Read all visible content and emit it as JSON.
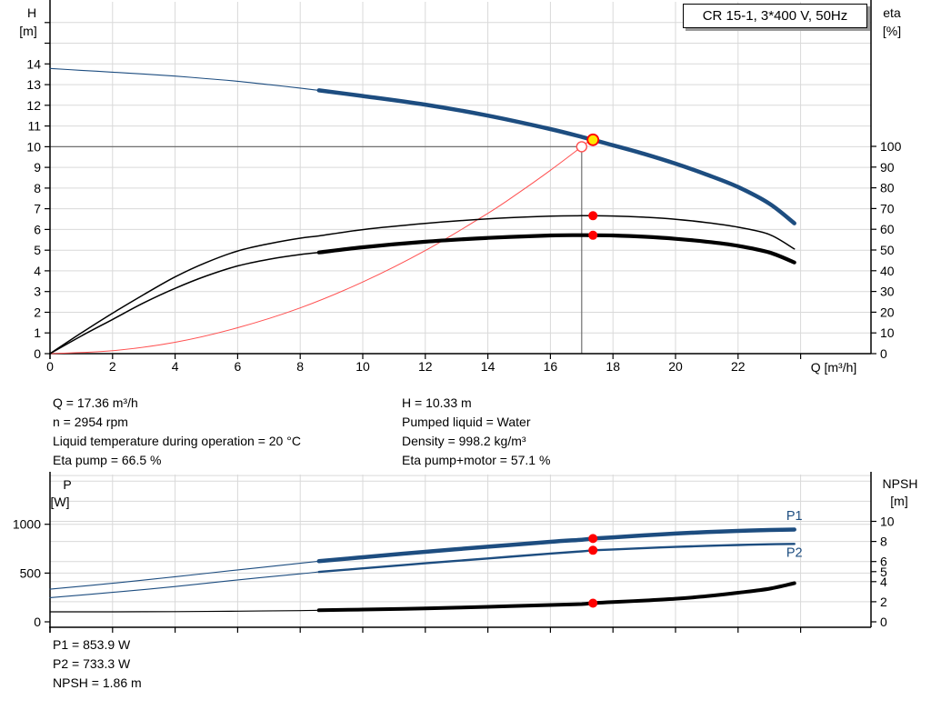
{
  "title_box": {
    "label": "CR 15-1, 3*400 V, 50Hz"
  },
  "info_top": {
    "left": [
      "Q = 17.36 m³/h",
      "n = 2954 rpm",
      "Liquid temperature during operation = 20 °C",
      "Eta pump = 66.5 %"
    ],
    "right": [
      "H = 10.33 m",
      "Pumped liquid = Water",
      "Density = 998.2 kg/m³",
      "Eta pump+motor = 57.1 %"
    ]
  },
  "info_bottom": [
    "P1 = 853.9 W",
    "P2 = 733.3 W",
    "NPSH = 1.86 m"
  ],
  "colors": {
    "curve_blue": "#1d4d80",
    "curve_black": "#000000",
    "marker_red": "#ff0000",
    "system_red": "#ff5050",
    "duty_yellow": "#ffe600",
    "grid": "#d9d9d9",
    "crosshair": "#6f6f6f",
    "axis": "#000000"
  },
  "chart_data": [
    {
      "name": "head-chart",
      "type": "line",
      "title": "CR 15-1, 3*400 V, 50Hz",
      "x_axis": {
        "label": "Q [m³/h]",
        "min": 0,
        "max": 26.25,
        "ticks": [
          0,
          2,
          4,
          6,
          8,
          10,
          12,
          14,
          16,
          18,
          20,
          22,
          24
        ],
        "tick_labels": [
          "0",
          "2",
          "4",
          "6",
          "8",
          "10",
          "12",
          "14",
          "16",
          "18",
          "20",
          "22",
          ""
        ],
        "gridlines": [
          2,
          4,
          6,
          8,
          10,
          12,
          14,
          16,
          18,
          20,
          22,
          24
        ]
      },
      "left_axis": {
        "label": [
          "H",
          "[m]"
        ],
        "min": 0,
        "max": 17.0,
        "ticks": [
          0,
          1,
          2,
          3,
          4,
          5,
          6,
          7,
          8,
          9,
          10,
          11,
          12,
          13,
          14,
          15,
          16
        ],
        "tick_labels": [
          "0",
          "1",
          "2",
          "3",
          "4",
          "5",
          "6",
          "7",
          "8",
          "9",
          "10",
          "11",
          "12",
          "13",
          "14",
          "",
          ""
        ],
        "gridlines": [
          1,
          2,
          3,
          4,
          5,
          6,
          7,
          8,
          9,
          10,
          11,
          12,
          13,
          14,
          15,
          16
        ]
      },
      "right_axis": {
        "label": [
          "eta",
          "[%]"
        ],
        "min": 0,
        "max": 169.7,
        "ticks": [
          0,
          10,
          20,
          30,
          40,
          50,
          60,
          70,
          80,
          90,
          100
        ],
        "tick_labels": [
          "0",
          "10",
          "20",
          "30",
          "40",
          "50",
          "60",
          "70",
          "80",
          "90",
          "100"
        ],
        "gridlines": []
      },
      "crosshair": {
        "q": 17.0,
        "value": 10.0
      },
      "series": [
        {
          "name": "system-curve",
          "axis": "left",
          "color": "#ff5050",
          "width": 1,
          "points": [
            [
              0,
              0
            ],
            [
              2,
              0.14
            ],
            [
              4,
              0.55
            ],
            [
              6,
              1.25
            ],
            [
              8,
              2.21
            ],
            [
              10,
              3.46
            ],
            [
              12,
              4.98
            ],
            [
              14,
              6.78
            ],
            [
              15,
              7.79
            ],
            [
              16,
              8.86
            ],
            [
              17,
              10.0
            ],
            [
              17.36,
              10.42
            ]
          ]
        },
        {
          "name": "eta-pump-curve",
          "axis": "right",
          "color": "#000000",
          "width": 1.5,
          "points": [
            [
              0,
              0
            ],
            [
              1,
              10
            ],
            [
              2,
              19.5
            ],
            [
              3,
              28.5
            ],
            [
              4,
              37
            ],
            [
              5,
              44
            ],
            [
              6,
              49.5
            ],
            [
              7,
              53
            ],
            [
              8,
              55.7
            ],
            [
              8.6,
              56.8
            ],
            [
              10,
              59.8
            ],
            [
              12,
              62.8
            ],
            [
              14,
              65
            ],
            [
              16,
              66.3
            ],
            [
              17,
              66.5
            ],
            [
              17.36,
              66.5
            ],
            [
              18,
              66.4
            ],
            [
              19,
              65.8
            ],
            [
              20,
              64.8
            ],
            [
              21,
              63.2
            ],
            [
              22,
              61
            ],
            [
              23,
              57.5
            ],
            [
              23.8,
              50.5
            ]
          ]
        },
        {
          "name": "eta-pump-motor-curve",
          "axis": "right",
          "color": "#000000",
          "width": 1.5,
          "thick_from": 8.6,
          "thick_width": 4.2,
          "points": [
            [
              0,
              0
            ],
            [
              1,
              8.5
            ],
            [
              2,
              16.5
            ],
            [
              3,
              24.5
            ],
            [
              4,
              31.5
            ],
            [
              5,
              37.5
            ],
            [
              6,
              42.3
            ],
            [
              7,
              45.5
            ],
            [
              8,
              47.8
            ],
            [
              8.6,
              48.8
            ],
            [
              10,
              51.3
            ],
            [
              12,
              54
            ],
            [
              14,
              55.8
            ],
            [
              16,
              57
            ],
            [
              17,
              57.15
            ],
            [
              17.36,
              57.1
            ],
            [
              18,
              57
            ],
            [
              19,
              56.4
            ],
            [
              20,
              55.4
            ],
            [
              21,
              54
            ],
            [
              22,
              52
            ],
            [
              23,
              48.8
            ],
            [
              23.8,
              44
            ]
          ]
        },
        {
          "name": "head-curve",
          "axis": "left",
          "color": "#1d4d80",
          "width": 1.1,
          "thick_from": 8.6,
          "thick_width": 4.5,
          "points": [
            [
              0,
              13.78
            ],
            [
              1,
              13.69
            ],
            [
              2,
              13.6
            ],
            [
              3,
              13.51
            ],
            [
              4,
              13.41
            ],
            [
              5,
              13.29
            ],
            [
              6,
              13.16
            ],
            [
              7,
              13.0
            ],
            [
              8,
              12.83
            ],
            [
              8.6,
              12.72
            ],
            [
              10,
              12.45
            ],
            [
              12,
              12.03
            ],
            [
              14,
              11.5
            ],
            [
              16,
              10.85
            ],
            [
              17.36,
              10.33
            ],
            [
              18,
              10.07
            ],
            [
              19,
              9.65
            ],
            [
              20,
              9.18
            ],
            [
              21,
              8.65
            ],
            [
              22,
              8.05
            ],
            [
              23,
              7.25
            ],
            [
              23.8,
              6.3
            ]
          ]
        }
      ],
      "series_labels": [],
      "markers": [
        {
          "name": "rated-duty-point",
          "shape": "open-circle",
          "axis": "left",
          "q": 17.0,
          "value": 10.0,
          "r": 5.5,
          "stroke": "#ff5050",
          "fill": "#ffffff"
        },
        {
          "name": "duty-point",
          "shape": "circle",
          "axis": "left",
          "q": 17.36,
          "value": 10.33,
          "r": 6,
          "stroke": "#ff0000",
          "fill": "#ffe600"
        },
        {
          "name": "eta-pump-duty-point",
          "shape": "circle",
          "axis": "right",
          "q": 17.36,
          "value": 66.5,
          "r": 5,
          "stroke": "none",
          "fill": "#ff0000"
        },
        {
          "name": "eta-pump-motor-duty-point",
          "shape": "circle",
          "axis": "right",
          "q": 17.36,
          "value": 57.1,
          "r": 5,
          "stroke": "none",
          "fill": "#ff0000"
        }
      ]
    },
    {
      "name": "power-chart",
      "type": "line",
      "x_axis": {
        "label": "",
        "min": 0,
        "max": 26.25,
        "ticks": [
          0,
          2,
          4,
          6,
          8,
          10,
          12,
          14,
          16,
          18,
          20,
          22,
          24
        ],
        "tick_labels": [
          "",
          "",
          "",
          "",
          "",
          "",
          "",
          "",
          "",
          "",
          "",
          "",
          ""
        ],
        "gridlines": [
          2,
          4,
          6,
          8,
          10,
          12,
          14,
          16,
          18,
          20,
          22,
          24
        ]
      },
      "left_axis": {
        "label": [
          "P",
          "[W]"
        ],
        "min": -55.9,
        "max": 1510,
        "ticks": [
          0,
          500,
          1000
        ],
        "tick_labels": [
          "0",
          "500",
          "1000"
        ],
        "gridlines": [
          500,
          1000,
          1500
        ]
      },
      "right_axis": {
        "label": [
          "NPSH",
          "[m]"
        ],
        "min": -0.54,
        "max": 14.66,
        "ticks": [
          0,
          2,
          4,
          5,
          6,
          8,
          10
        ],
        "tick_labels": [
          "0",
          "2",
          "4",
          "5",
          "6",
          "8",
          "10"
        ],
        "gridlines": [
          2,
          4,
          6,
          8,
          10,
          12,
          14
        ]
      },
      "series": [
        {
          "name": "npsh-curve",
          "axis": "right",
          "color": "#000000",
          "width": 1.2,
          "thick_from": 8.6,
          "thick_width": 4,
          "points": [
            [
              0,
              1.0
            ],
            [
              2,
              1.0
            ],
            [
              4,
              1.02
            ],
            [
              6,
              1.06
            ],
            [
              8,
              1.12
            ],
            [
              8.6,
              1.15
            ],
            [
              10,
              1.22
            ],
            [
              12,
              1.34
            ],
            [
              14,
              1.5
            ],
            [
              16,
              1.68
            ],
            [
              17,
              1.77
            ],
            [
              17.36,
              1.86
            ],
            [
              18,
              1.97
            ],
            [
              19,
              2.12
            ],
            [
              20,
              2.3
            ],
            [
              21,
              2.55
            ],
            [
              22,
              2.9
            ],
            [
              23,
              3.3
            ],
            [
              23.8,
              3.85
            ]
          ]
        },
        {
          "name": "p2-curve",
          "axis": "left",
          "color": "#1d4d80",
          "width": 1.1,
          "thick_from": 8.6,
          "thick_width": 2.4,
          "points": [
            [
              0,
              248
            ],
            [
              2,
              302
            ],
            [
              4,
              362
            ],
            [
              6,
              430
            ],
            [
              8,
              492
            ],
            [
              8.6,
              512
            ],
            [
              10,
              548
            ],
            [
              12,
              600
            ],
            [
              14,
              650
            ],
            [
              16,
              700
            ],
            [
              17,
              722
            ],
            [
              17.36,
              733.3
            ],
            [
              18,
              742
            ],
            [
              19,
              756
            ],
            [
              20,
              768
            ],
            [
              21,
              779
            ],
            [
              22,
              788
            ],
            [
              23,
              795
            ],
            [
              23.8,
              799
            ]
          ]
        },
        {
          "name": "p1-curve",
          "axis": "left",
          "color": "#1d4d80",
          "width": 1.1,
          "thick_from": 8.6,
          "thick_width": 4.5,
          "points": [
            [
              0,
              335
            ],
            [
              2,
              395
            ],
            [
              4,
              462
            ],
            [
              6,
              532
            ],
            [
              8,
              600
            ],
            [
              8.6,
              622
            ],
            [
              10,
              662
            ],
            [
              12,
              718
            ],
            [
              14,
              770
            ],
            [
              16,
              820
            ],
            [
              17,
              842
            ],
            [
              17.36,
              853.9
            ],
            [
              18,
              866
            ],
            [
              19,
              886
            ],
            [
              20,
              905
            ],
            [
              21,
              920
            ],
            [
              22,
              932
            ],
            [
              23,
              941
            ],
            [
              23.8,
              946
            ]
          ]
        }
      ],
      "series_labels": [
        {
          "text": "P1",
          "axis": "left",
          "q": 23.8,
          "value": 1090,
          "color": "#1d4d80"
        },
        {
          "text": "P2",
          "axis": "left",
          "q": 23.8,
          "value": 712,
          "color": "#1d4d80"
        }
      ],
      "markers": [
        {
          "name": "p1-duty-point",
          "shape": "circle",
          "axis": "left",
          "q": 17.36,
          "value": 853.9,
          "r": 5,
          "stroke": "none",
          "fill": "#ff0000"
        },
        {
          "name": "p2-duty-point",
          "shape": "circle",
          "axis": "left",
          "q": 17.36,
          "value": 733.3,
          "r": 5,
          "stroke": "none",
          "fill": "#ff0000"
        },
        {
          "name": "npsh-duty-point",
          "shape": "circle",
          "axis": "right",
          "q": 17.36,
          "value": 1.86,
          "r": 5,
          "stroke": "none",
          "fill": "#ff0000"
        }
      ]
    }
  ]
}
